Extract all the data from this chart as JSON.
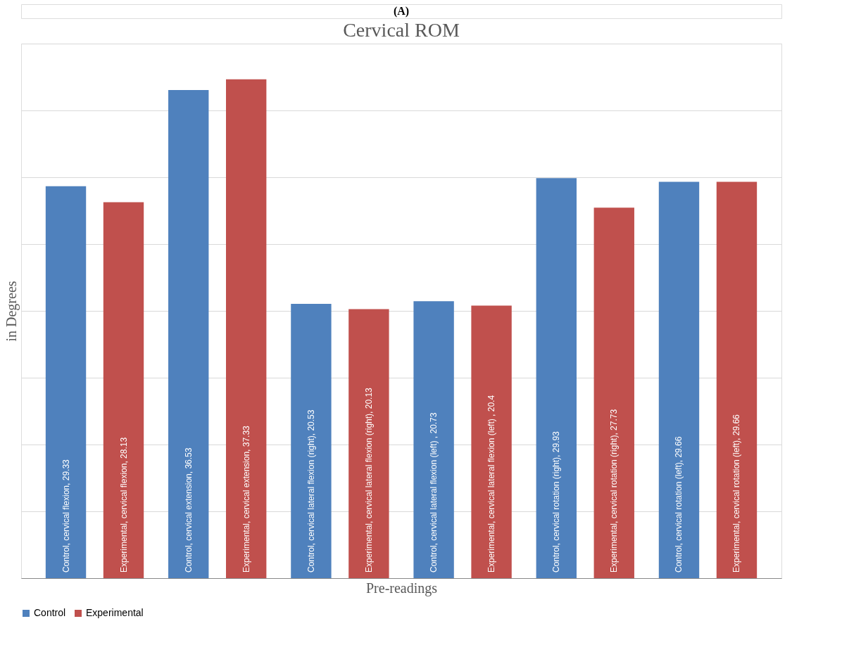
{
  "chart_data": {
    "type": "bar",
    "title": "Cervical ROM",
    "xlabel": "Pre-readings",
    "ylabel": "in Degrees",
    "annotations": [
      "(A)"
    ],
    "categories": [
      null,
      null,
      null,
      null,
      null,
      null
    ],
    "series": [
      {
        "name": "Control",
        "color": "#4f81bd",
        "values": [
          29.33,
          36.53,
          20.53,
          20.73,
          29.93,
          29.66
        ],
        "value_labels": [
          "Control, cervical flexion, 29.33",
          "Control, cervical extension, 36.53",
          "Control, cervical lateral flexion (right), 20.53",
          "Control, cervical lateral flexion (left) , 20.73",
          "Control, cervical rotation (right), 29.93",
          "Control, cervical rotation (left), 29.66"
        ]
      },
      {
        "name": "Experimental",
        "color": "#c0504d",
        "values": [
          28.13,
          37.33,
          20.13,
          20.4,
          27.73,
          29.66
        ],
        "value_labels": [
          "Experimental, cervical flexion, 28.13",
          "Experimental, cervical extension, 37.33",
          "Experimental, cervical lateral flexion (right), 20.13",
          "Experimental, cervical lateral flexion (left) , 20.4",
          "Experimental, cervical rotation (right), 27.73",
          "Experimental, cervical rotation (left), 29.66"
        ]
      }
    ],
    "ylim": [
      0,
      40
    ],
    "yticks": [
      {
        "value": 0,
        "label": null
      },
      {
        "value": 5,
        "label": null
      },
      {
        "value": 10,
        "label": null
      },
      {
        "value": 15,
        "label": null
      },
      {
        "value": 20,
        "label": null
      },
      {
        "value": 25,
        "label": null
      },
      {
        "value": 30,
        "label": null
      },
      {
        "value": 35,
        "label": null
      },
      {
        "value": 40,
        "label": null
      }
    ],
    "grid": "y",
    "legend": "bottom",
    "tick_labels": false
  }
}
